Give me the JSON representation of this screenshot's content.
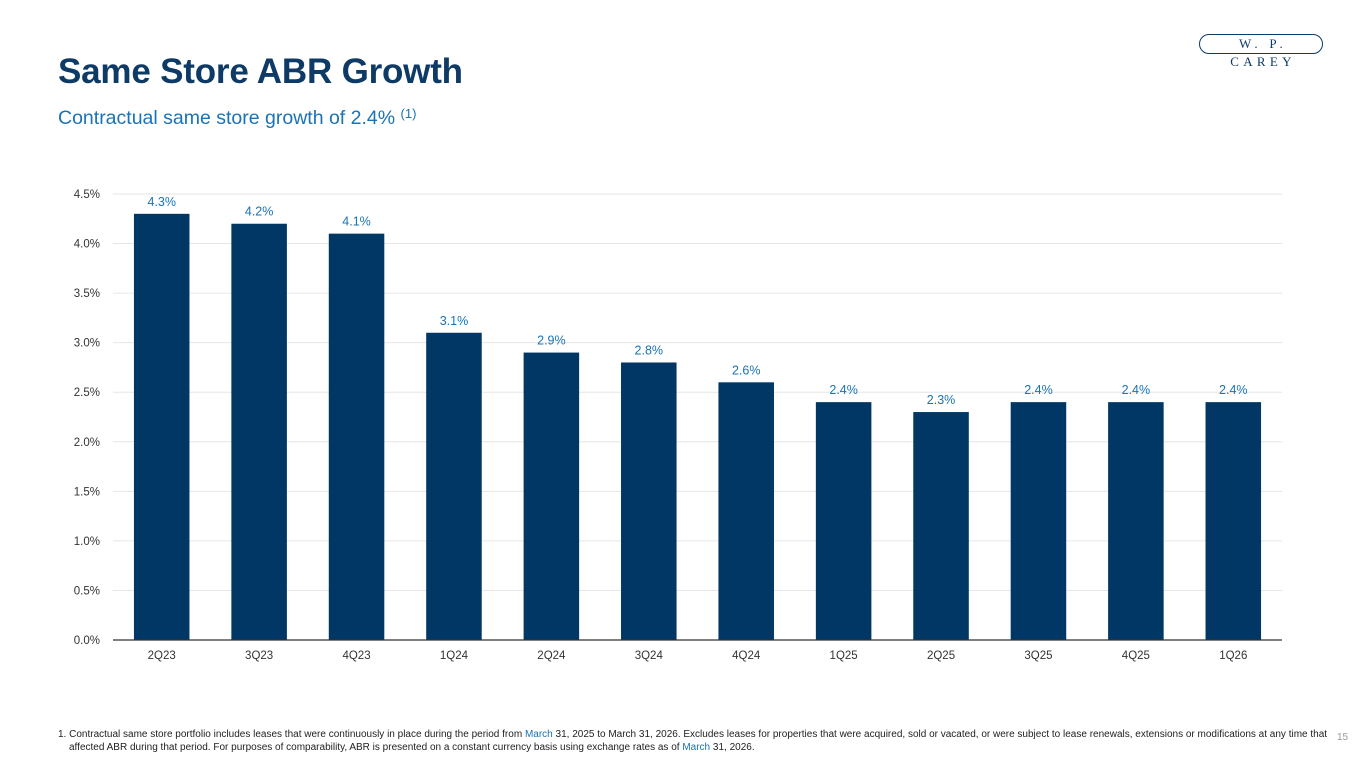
{
  "slide": {
    "title": "Same Store ABR Growth",
    "subtitle": "Contractual same store growth of 2.4%",
    "subtitle_ref": "(1)",
    "logo_text": "W. P. CAREY",
    "page_number": "15"
  },
  "footnote": {
    "marker": "1.",
    "part1": "Contractual same store portfolio includes leases that were continuously in place during the period from ",
    "date1": "March",
    "part2": " 31, 2025 to March 31, 2026. Excludes leases for properties that were acquired, sold or vacated, or were subject to lease renewals, extensions or modifications at any time that affected ABR during that period. For purposes of comparability, ABR is presented on a constant currency basis using exchange rates as of ",
    "date2": "March",
    "part3": " 31, 2026."
  },
  "chart_data": {
    "type": "bar",
    "categories": [
      "2Q23",
      "3Q23",
      "4Q23",
      "1Q24",
      "2Q24",
      "3Q24",
      "4Q24",
      "1Q25",
      "2Q25",
      "3Q25",
      "4Q25",
      "1Q26"
    ],
    "values": [
      4.3,
      4.2,
      4.1,
      3.1,
      2.9,
      2.8,
      2.6,
      2.4,
      2.3,
      2.4,
      2.4,
      2.4
    ],
    "data_labels": [
      "4.3%",
      "4.2%",
      "4.1%",
      "3.1%",
      "2.9%",
      "2.8%",
      "2.6%",
      "2.4%",
      "2.3%",
      "2.4%",
      "2.4%",
      "2.4%"
    ],
    "y_ticks": [
      0,
      0.5,
      1.0,
      1.5,
      2.0,
      2.5,
      3.0,
      3.5,
      4.0,
      4.5
    ],
    "y_tick_labels": [
      "0.0%",
      "0.5%",
      "1.0%",
      "1.5%",
      "2.0%",
      "2.5%",
      "3.0%",
      "3.5%",
      "4.0%",
      "4.5%"
    ],
    "ylim": [
      0,
      4.5
    ],
    "grid": true,
    "legend": false,
    "colors": {
      "bar": "#003764",
      "data_label": "#1a73b5",
      "grid": "#e6e6e6",
      "axis": "#333333",
      "tick_label": "#333333"
    }
  }
}
